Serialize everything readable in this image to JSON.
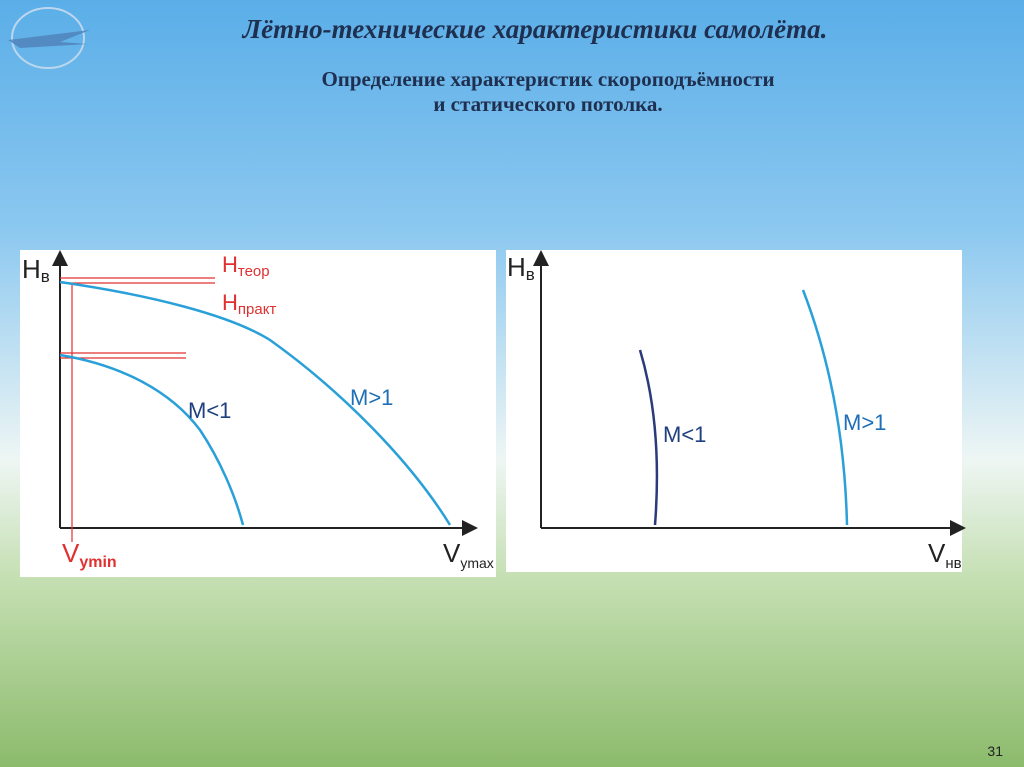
{
  "header": {
    "title": "Лётно-технические характеристики самолёта.",
    "subtitle": [
      "Определение характеристик  скороподъёмности",
      "и статического потолка."
    ]
  },
  "left_diagram": {
    "y_axis": {
      "main": "H",
      "sub": "в"
    },
    "x_start": {
      "main": "V",
      "sub": "ymin"
    },
    "x_end": {
      "main": "V",
      "sub": "ymax"
    },
    "h_theor": {
      "main": "H",
      "sub": "теор"
    },
    "h_pract": {
      "main": "H",
      "sub": "практ"
    },
    "curves": [
      "M<1",
      "M>1"
    ]
  },
  "right_diagram": {
    "y_axis": {
      "main": "H",
      "sub": "в"
    },
    "x_axis": {
      "main": "V",
      "sub": "нв"
    },
    "curves": [
      "M<1",
      "M>1"
    ]
  },
  "page_number": "31"
}
